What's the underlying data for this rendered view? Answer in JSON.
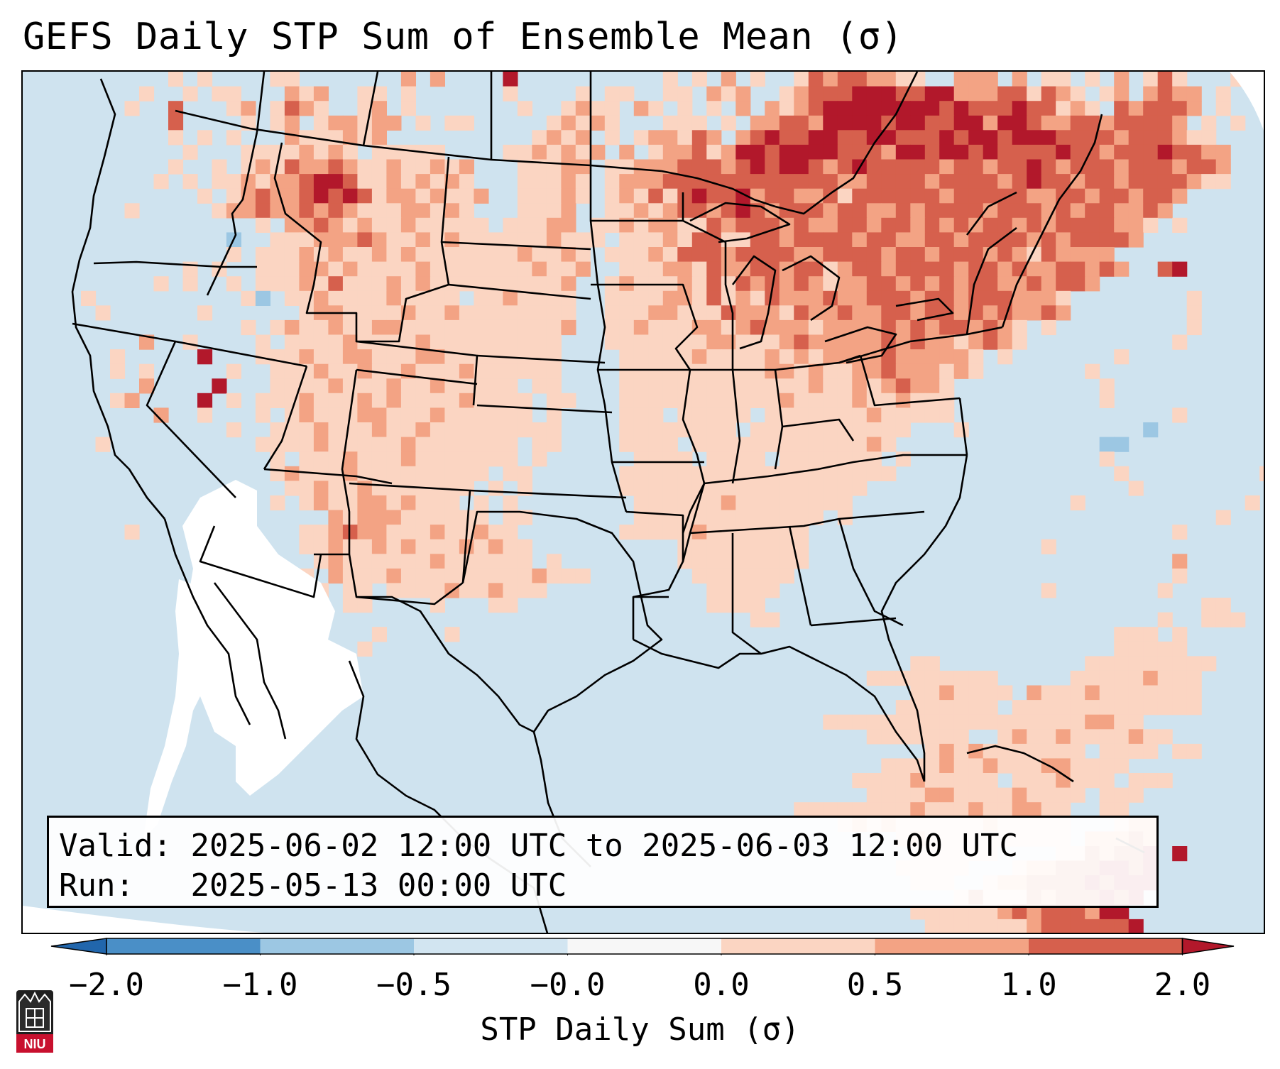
{
  "title": "GEFS Daily STP Sum of Ensemble Mean (σ)",
  "info": {
    "valid_label": "Valid:",
    "valid_value": "2025-06-02 12:00 UTC to 2025-06-03 12:00 UTC",
    "run_label": "Run:",
    "run_value": "2025-05-13 00:00 UTC"
  },
  "colorbar": {
    "label": "STP Daily Sum (σ)",
    "ticks": [
      "−2.0",
      "−1.0",
      "−0.5",
      "−0.0",
      "0.0",
      "0.5",
      "1.0",
      "2.0"
    ],
    "bins": [
      {
        "from": -2.0,
        "to": -1.0,
        "color": "#4a8fc7"
      },
      {
        "from": -1.0,
        "to": -0.5,
        "color": "#9cc7e3"
      },
      {
        "from": -0.5,
        "to": -0.0,
        "color": "#d2e5f1"
      },
      {
        "from": -0.0,
        "to": 0.0,
        "color": "#f7f7f7"
      },
      {
        "from": 0.0,
        "to": 0.5,
        "color": "#fbd5c2"
      },
      {
        "from": 0.5,
        "to": 1.0,
        "color": "#f3a384"
      },
      {
        "from": 1.0,
        "to": 2.0,
        "color": "#d6604d"
      }
    ],
    "under_color": "#2166ac",
    "over_color": "#b2182b"
  },
  "map_layers": {
    "background_color": "#cfe3ef",
    "outside_projection_color": "#ffffff",
    "near_zero_color": "#ffffff",
    "boundary_color": "#000000",
    "cell_colors": {
      "l": "#fbd5c2",
      "m": "#f3a384",
      "h": "#d6604d",
      "x": "#b2182b",
      "b": "#9cc7e3"
    }
  },
  "logo": {
    "text": "NIU"
  }
}
